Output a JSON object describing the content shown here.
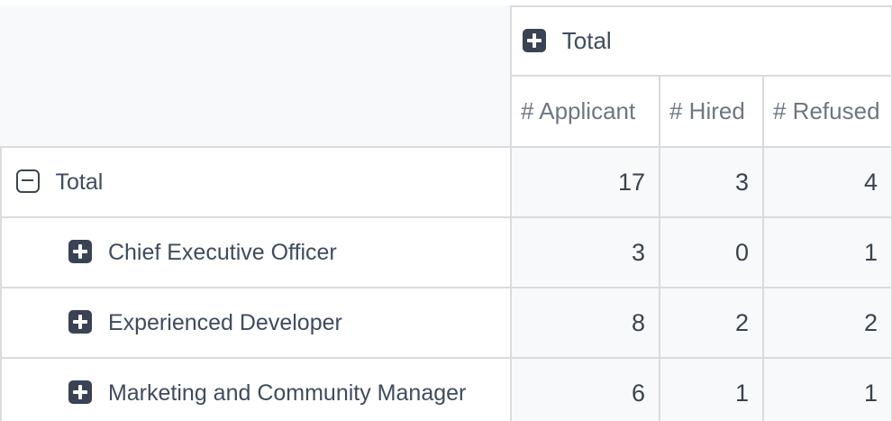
{
  "colors": {
    "text_dark": "#3f4b5f",
    "text_muted": "#6e7683",
    "icon_dark": "#394353",
    "border": "#d9dbde",
    "cell_background": "#f8f9fa",
    "header_background": "#ffffff",
    "page_background": "#f8f9fa"
  },
  "table": {
    "column_group": {
      "label": "Total",
      "icon": "plus-square-icon"
    },
    "measures": [
      "# Applicant",
      "# Hired",
      "# Refused"
    ],
    "rows": [
      {
        "label": "Total",
        "icon": "minus-square-icon",
        "level": 0,
        "values": [
          17,
          3,
          4
        ]
      },
      {
        "label": "Chief Executive Officer",
        "icon": "plus-square-icon",
        "level": 1,
        "values": [
          3,
          0,
          1
        ]
      },
      {
        "label": "Experienced Developer",
        "icon": "plus-square-icon",
        "level": 1,
        "values": [
          8,
          2,
          2
        ]
      },
      {
        "label": "Marketing and Community Manager",
        "icon": "plus-square-icon",
        "level": 1,
        "values": [
          6,
          1,
          1
        ]
      }
    ]
  }
}
